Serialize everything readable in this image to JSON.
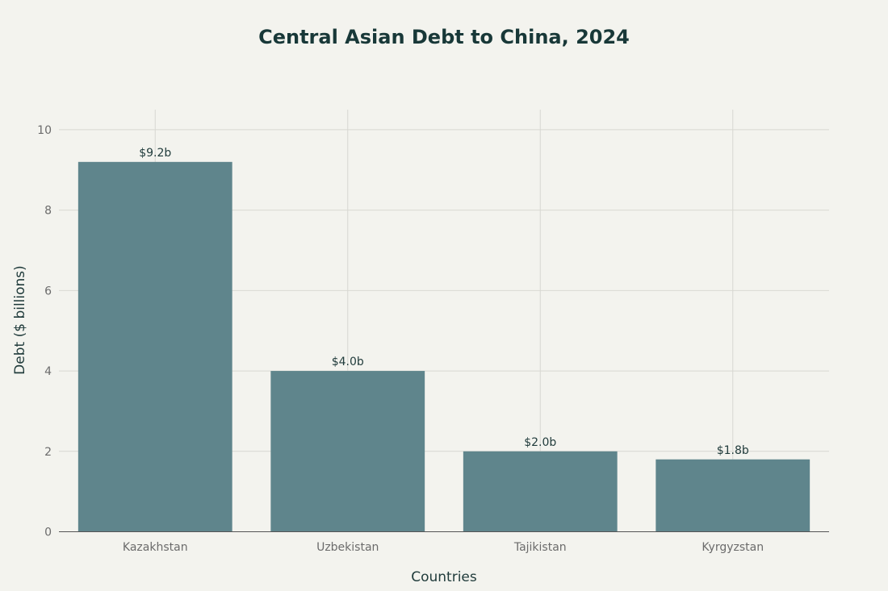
{
  "chart_data": {
    "type": "bar",
    "title": "Central Asian Debt to China, 2024",
    "xlabel": "Countries",
    "ylabel": "Debt ($ billions)",
    "categories": [
      "Kazakhstan",
      "Uzbekistan",
      "Tajikistan",
      "Kyrgyzstan"
    ],
    "values": [
      9.2,
      4.0,
      2.0,
      1.8
    ],
    "data_labels": [
      "$9.2b",
      "$4.0b",
      "$2.0b",
      "$1.8b"
    ],
    "ylim": [
      0,
      10.5
    ],
    "yticks": [
      "0",
      "2",
      "4",
      "6",
      "8",
      "10"
    ],
    "grid": true,
    "bar_color": "#5f858c",
    "background_color": "#f3f3ee"
  }
}
